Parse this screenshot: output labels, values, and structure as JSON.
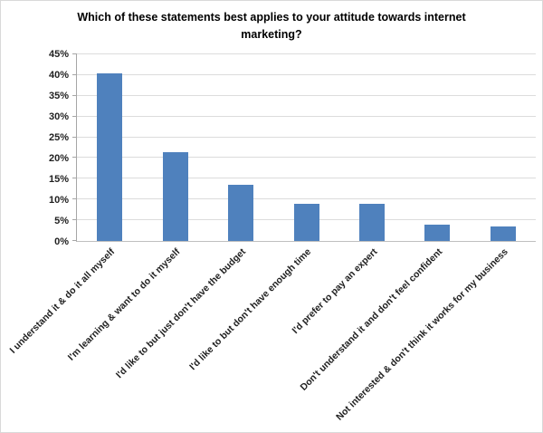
{
  "chart_data": {
    "type": "bar",
    "title": "Which of these statements best applies to your attitude towards internet marketing?",
    "title_lines": [
      "Which of these statements best applies to your attitude towards internet",
      "marketing?"
    ],
    "categories": [
      "I understand it & do it all myself",
      "I'm learning & want to do it myself",
      "I'd like to but just don't have the budget",
      "I'd like to but don't have enough time",
      "I'd prefer to pay an expert",
      "Don't understand it and don't feel confident",
      "Not interested & don't think it works for my business"
    ],
    "values": [
      40.5,
      21.5,
      13.5,
      9,
      9,
      4,
      3.5
    ],
    "value_unit": "%",
    "xlabel": "",
    "ylabel": "",
    "ylim": [
      0,
      45
    ],
    "yticks": [
      "0%",
      "5%",
      "10%",
      "15%",
      "20%",
      "25%",
      "30%",
      "35%",
      "40%",
      "45%"
    ],
    "grid": true,
    "legend_position": "none",
    "bar_color": "#4F81BD",
    "gridline_color": "#dcdcdc",
    "axis_color": "#a6a6a6",
    "text_color": "#1f1f1f"
  }
}
